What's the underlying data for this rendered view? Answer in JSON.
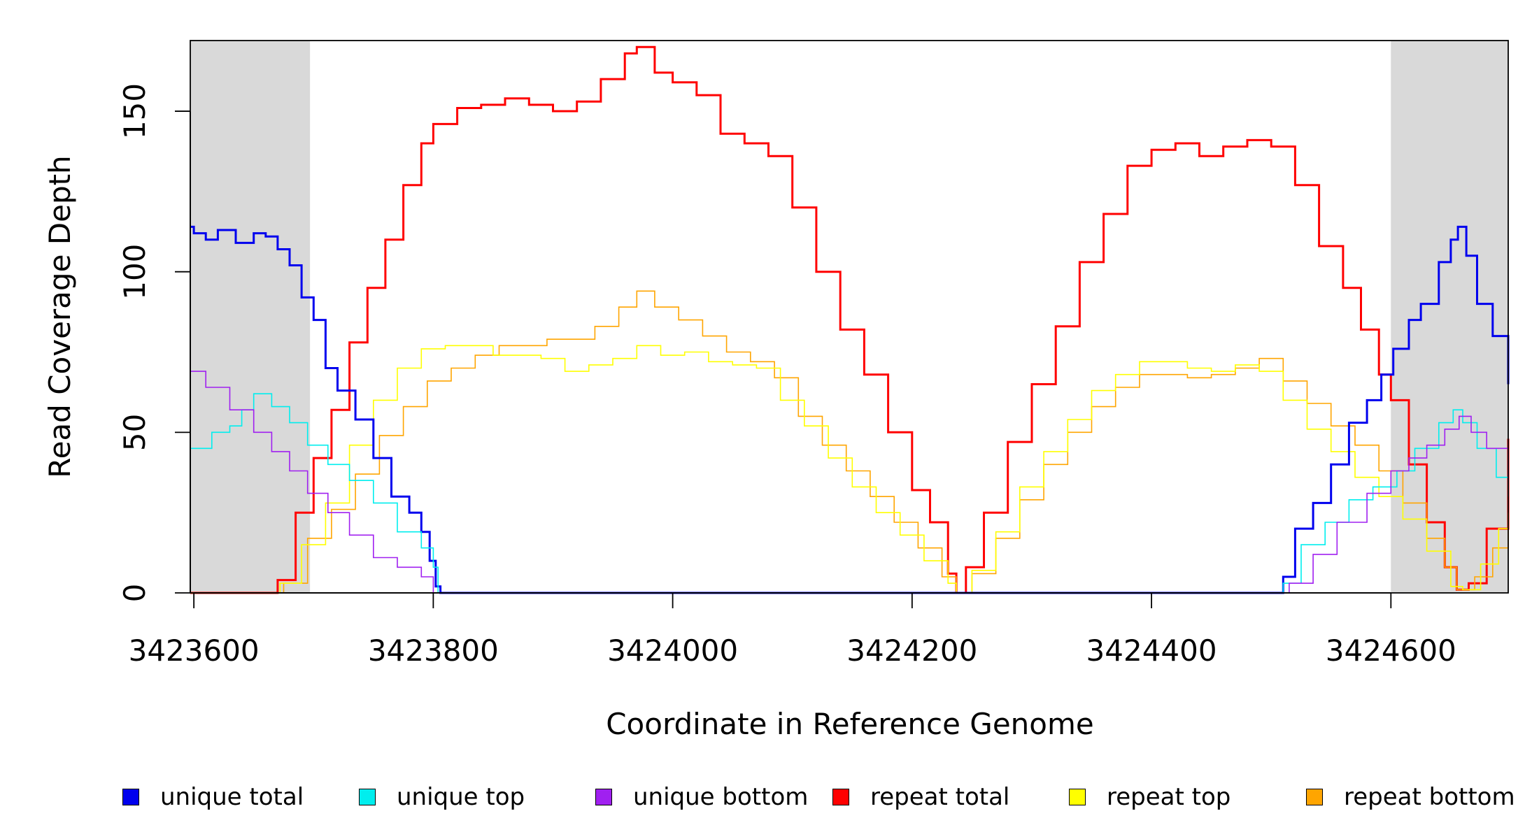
{
  "chart_data": {
    "type": "line",
    "title": "",
    "xlabel": "Coordinate in Reference Genome",
    "ylabel": "Read Coverage Depth",
    "xlim": [
      3423597,
      3424698
    ],
    "ylim": [
      0,
      172
    ],
    "x_ticks": [
      3423600,
      3423800,
      3424000,
      3424200,
      3424400,
      3424600
    ],
    "x_tick_labels": [
      "3423600",
      "3423800",
      "3424000",
      "3424200",
      "3424400",
      "3424600"
    ],
    "y_ticks": [
      0,
      50,
      100,
      150
    ],
    "y_tick_labels": [
      "0",
      "50",
      "100",
      "150"
    ],
    "shaded_regions": [
      [
        3423597,
        3423697
      ],
      [
        3424600,
        3424698
      ]
    ],
    "shade_color": "#d9d9d9",
    "legend_position": "bottom",
    "series": [
      {
        "name": "unique total",
        "color": "#0000ee",
        "stroke": 3,
        "points": [
          [
            3423597,
            114
          ],
          [
            3423600,
            112
          ],
          [
            3423610,
            110
          ],
          [
            3423620,
            113
          ],
          [
            3423635,
            109
          ],
          [
            3423650,
            112
          ],
          [
            3423660,
            111
          ],
          [
            3423670,
            107
          ],
          [
            3423680,
            102
          ],
          [
            3423690,
            92
          ],
          [
            3423700,
            85
          ],
          [
            3423710,
            70
          ],
          [
            3423720,
            63
          ],
          [
            3423735,
            54
          ],
          [
            3423750,
            42
          ],
          [
            3423765,
            30
          ],
          [
            3423780,
            25
          ],
          [
            3423790,
            19
          ],
          [
            3423797,
            10
          ],
          [
            3423802,
            2
          ],
          [
            3423806,
            0
          ],
          [
            3424505,
            0
          ],
          [
            3424510,
            5
          ],
          [
            3424520,
            20
          ],
          [
            3424535,
            28
          ],
          [
            3424550,
            40
          ],
          [
            3424565,
            53
          ],
          [
            3424580,
            60
          ],
          [
            3424592,
            68
          ],
          [
            3424602,
            76
          ],
          [
            3424615,
            85
          ],
          [
            3424625,
            90
          ],
          [
            3424640,
            103
          ],
          [
            3424650,
            110
          ],
          [
            3424656,
            114
          ],
          [
            3424663,
            105
          ],
          [
            3424672,
            90
          ],
          [
            3424685,
            80
          ],
          [
            3424698,
            65
          ]
        ]
      },
      {
        "name": "unique top",
        "color": "#00eeee",
        "stroke": 1.6,
        "points": [
          [
            3423597,
            45
          ],
          [
            3423605,
            45
          ],
          [
            3423615,
            50
          ],
          [
            3423630,
            52
          ],
          [
            3423640,
            57
          ],
          [
            3423650,
            62
          ],
          [
            3423665,
            58
          ],
          [
            3423680,
            53
          ],
          [
            3423695,
            46
          ],
          [
            3423712,
            40
          ],
          [
            3423730,
            35
          ],
          [
            3423750,
            28
          ],
          [
            3423770,
            19
          ],
          [
            3423790,
            14
          ],
          [
            3423800,
            8
          ],
          [
            3423804,
            0
          ],
          [
            3424505,
            0
          ],
          [
            3424510,
            3
          ],
          [
            3424525,
            15
          ],
          [
            3424545,
            22
          ],
          [
            3424565,
            29
          ],
          [
            3424585,
            33
          ],
          [
            3424605,
            38
          ],
          [
            3424620,
            45
          ],
          [
            3424640,
            53
          ],
          [
            3424652,
            57
          ],
          [
            3424660,
            53
          ],
          [
            3424672,
            45
          ],
          [
            3424688,
            36
          ],
          [
            3424698,
            30
          ]
        ]
      },
      {
        "name": "unique bottom",
        "color": "#a020f0",
        "stroke": 1.6,
        "points": [
          [
            3423597,
            69
          ],
          [
            3423610,
            64
          ],
          [
            3423630,
            57
          ],
          [
            3423650,
            50
          ],
          [
            3423665,
            44
          ],
          [
            3423680,
            38
          ],
          [
            3423695,
            31
          ],
          [
            3423712,
            25
          ],
          [
            3423730,
            18
          ],
          [
            3423750,
            11
          ],
          [
            3423770,
            8
          ],
          [
            3423790,
            5
          ],
          [
            3423800,
            0
          ],
          [
            3424505,
            0
          ],
          [
            3424515,
            3
          ],
          [
            3424535,
            12
          ],
          [
            3424555,
            22
          ],
          [
            3424580,
            31
          ],
          [
            3424600,
            38
          ],
          [
            3424615,
            42
          ],
          [
            3424630,
            46
          ],
          [
            3424645,
            51
          ],
          [
            3424657,
            55
          ],
          [
            3424667,
            50
          ],
          [
            3424680,
            45
          ],
          [
            3424698,
            35
          ]
        ]
      },
      {
        "name": "repeat total",
        "color": "#ff0000",
        "stroke": 3,
        "points": [
          [
            3423597,
            0
          ],
          [
            3423660,
            0
          ],
          [
            3423670,
            4
          ],
          [
            3423685,
            25
          ],
          [
            3423700,
            42
          ],
          [
            3423715,
            57
          ],
          [
            3423730,
            78
          ],
          [
            3423745,
            95
          ],
          [
            3423760,
            110
          ],
          [
            3423775,
            127
          ],
          [
            3423790,
            140
          ],
          [
            3423800,
            146
          ],
          [
            3423820,
            151
          ],
          [
            3423840,
            152
          ],
          [
            3423860,
            154
          ],
          [
            3423880,
            152
          ],
          [
            3423900,
            150
          ],
          [
            3423920,
            153
          ],
          [
            3423940,
            160
          ],
          [
            3423960,
            168
          ],
          [
            3423970,
            170
          ],
          [
            3423985,
            162
          ],
          [
            3424000,
            159
          ],
          [
            3424020,
            155
          ],
          [
            3424040,
            143
          ],
          [
            3424060,
            140
          ],
          [
            3424080,
            136
          ],
          [
            3424100,
            120
          ],
          [
            3424120,
            100
          ],
          [
            3424140,
            82
          ],
          [
            3424160,
            68
          ],
          [
            3424180,
            50
          ],
          [
            3424200,
            32
          ],
          [
            3424215,
            22
          ],
          [
            3424230,
            6
          ],
          [
            3424237,
            0
          ],
          [
            3424245,
            8
          ],
          [
            3424260,
            25
          ],
          [
            3424280,
            47
          ],
          [
            3424300,
            65
          ],
          [
            3424320,
            83
          ],
          [
            3424340,
            103
          ],
          [
            3424360,
            118
          ],
          [
            3424380,
            133
          ],
          [
            3424400,
            138
          ],
          [
            3424420,
            140
          ],
          [
            3424440,
            136
          ],
          [
            3424460,
            139
          ],
          [
            3424480,
            141
          ],
          [
            3424500,
            139
          ],
          [
            3424520,
            127
          ],
          [
            3424540,
            108
          ],
          [
            3424560,
            95
          ],
          [
            3424575,
            82
          ],
          [
            3424590,
            68
          ],
          [
            3424600,
            60
          ],
          [
            3424615,
            40
          ],
          [
            3424630,
            22
          ],
          [
            3424645,
            8
          ],
          [
            3424655,
            1
          ],
          [
            3424665,
            3
          ],
          [
            3424680,
            20
          ],
          [
            3424698,
            48
          ]
        ]
      },
      {
        "name": "repeat top",
        "color": "#ffff00",
        "stroke": 1.6,
        "points": [
          [
            3423597,
            0
          ],
          [
            3423660,
            0
          ],
          [
            3423672,
            3
          ],
          [
            3423690,
            15
          ],
          [
            3423710,
            28
          ],
          [
            3423730,
            46
          ],
          [
            3423750,
            60
          ],
          [
            3423770,
            70
          ],
          [
            3423790,
            76
          ],
          [
            3423810,
            77
          ],
          [
            3423830,
            77
          ],
          [
            3423850,
            74
          ],
          [
            3423870,
            74
          ],
          [
            3423890,
            73
          ],
          [
            3423910,
            69
          ],
          [
            3423930,
            71
          ],
          [
            3423950,
            73
          ],
          [
            3423970,
            77
          ],
          [
            3423990,
            74
          ],
          [
            3424010,
            75
          ],
          [
            3424030,
            72
          ],
          [
            3424050,
            71
          ],
          [
            3424070,
            70
          ],
          [
            3424090,
            60
          ],
          [
            3424110,
            52
          ],
          [
            3424130,
            42
          ],
          [
            3424150,
            33
          ],
          [
            3424170,
            25
          ],
          [
            3424190,
            18
          ],
          [
            3424210,
            10
          ],
          [
            3424230,
            3
          ],
          [
            3424237,
            0
          ],
          [
            3424250,
            7
          ],
          [
            3424270,
            19
          ],
          [
            3424290,
            33
          ],
          [
            3424310,
            44
          ],
          [
            3424330,
            54
          ],
          [
            3424350,
            63
          ],
          [
            3424370,
            68
          ],
          [
            3424390,
            72
          ],
          [
            3424410,
            72
          ],
          [
            3424430,
            70
          ],
          [
            3424450,
            69
          ],
          [
            3424470,
            71
          ],
          [
            3424490,
            69
          ],
          [
            3424510,
            60
          ],
          [
            3424530,
            51
          ],
          [
            3424550,
            44
          ],
          [
            3424570,
            36
          ],
          [
            3424590,
            30
          ],
          [
            3424610,
            23
          ],
          [
            3424630,
            13
          ],
          [
            3424650,
            2
          ],
          [
            3424660,
            1
          ],
          [
            3424675,
            9
          ],
          [
            3424690,
            20
          ],
          [
            3424698,
            25
          ]
        ]
      },
      {
        "name": "repeat bottom",
        "color": "#ffa500",
        "stroke": 1.6,
        "points": [
          [
            3423597,
            0
          ],
          [
            3423665,
            0
          ],
          [
            3423675,
            3
          ],
          [
            3423695,
            17
          ],
          [
            3423715,
            26
          ],
          [
            3423735,
            37
          ],
          [
            3423755,
            49
          ],
          [
            3423775,
            58
          ],
          [
            3423795,
            66
          ],
          [
            3423815,
            70
          ],
          [
            3423835,
            74
          ],
          [
            3423855,
            77
          ],
          [
            3423875,
            77
          ],
          [
            3423895,
            79
          ],
          [
            3423915,
            79
          ],
          [
            3423935,
            83
          ],
          [
            3423955,
            89
          ],
          [
            3423970,
            94
          ],
          [
            3423985,
            89
          ],
          [
            3424005,
            85
          ],
          [
            3424025,
            80
          ],
          [
            3424045,
            75
          ],
          [
            3424065,
            72
          ],
          [
            3424085,
            67
          ],
          [
            3424105,
            55
          ],
          [
            3424125,
            46
          ],
          [
            3424145,
            38
          ],
          [
            3424165,
            30
          ],
          [
            3424185,
            22
          ],
          [
            3424205,
            14
          ],
          [
            3424225,
            5
          ],
          [
            3424237,
            0
          ],
          [
            3424250,
            6
          ],
          [
            3424270,
            17
          ],
          [
            3424290,
            29
          ],
          [
            3424310,
            40
          ],
          [
            3424330,
            50
          ],
          [
            3424350,
            58
          ],
          [
            3424370,
            64
          ],
          [
            3424390,
            68
          ],
          [
            3424410,
            68
          ],
          [
            3424430,
            67
          ],
          [
            3424450,
            68
          ],
          [
            3424470,
            70
          ],
          [
            3424490,
            73
          ],
          [
            3424510,
            66
          ],
          [
            3424530,
            59
          ],
          [
            3424550,
            52
          ],
          [
            3424570,
            46
          ],
          [
            3424590,
            38
          ],
          [
            3424610,
            28
          ],
          [
            3424630,
            17
          ],
          [
            3424645,
            8
          ],
          [
            3424655,
            1
          ],
          [
            3424670,
            5
          ],
          [
            3424685,
            14
          ],
          [
            3424698,
            21
          ]
        ]
      }
    ]
  }
}
